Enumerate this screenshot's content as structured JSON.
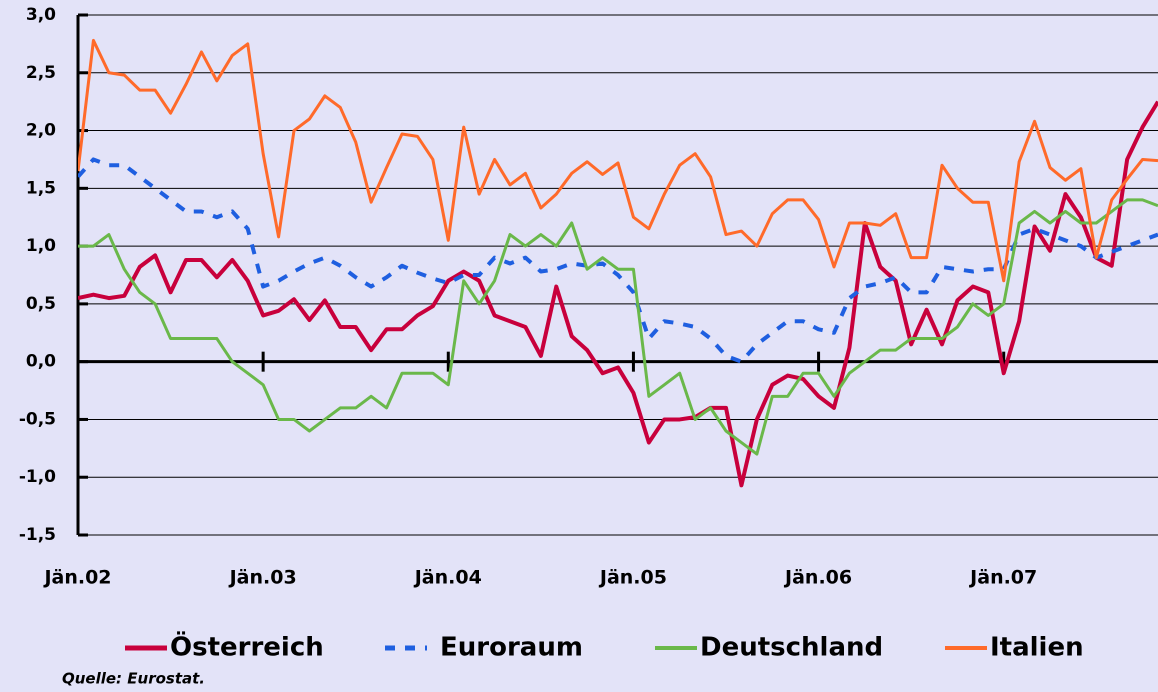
{
  "chart_data": {
    "type": "line",
    "categories": [
      "Jän.02",
      null,
      null,
      null,
      null,
      null,
      null,
      null,
      null,
      null,
      null,
      null,
      "Jän.03",
      null,
      null,
      null,
      null,
      null,
      null,
      null,
      null,
      null,
      null,
      null,
      "Jän.04",
      null,
      null,
      null,
      null,
      null,
      null,
      null,
      null,
      null,
      null,
      null,
      "Jän.05",
      null,
      null,
      null,
      null,
      null,
      null,
      null,
      null,
      null,
      null,
      null,
      "Jän.06",
      null,
      null,
      null,
      null,
      null,
      null,
      null,
      null,
      null,
      null,
      null,
      "Jän.07",
      null,
      null,
      null,
      null,
      null,
      null,
      null,
      null,
      null,
      null
    ],
    "series": [
      {
        "name": "Österreich",
        "color": "#c8003c",
        "style": "solid",
        "width": 4,
        "values": [
          0.55,
          0.58,
          0.55,
          0.57,
          0.82,
          0.92,
          0.6,
          0.88,
          0.88,
          0.73,
          0.88,
          0.7,
          0.4,
          0.44,
          0.54,
          0.36,
          0.53,
          0.3,
          0.3,
          0.1,
          0.28,
          0.28,
          0.4,
          0.48,
          0.7,
          0.78,
          0.7,
          0.4,
          0.35,
          0.3,
          0.05,
          0.65,
          0.22,
          0.1,
          -0.1,
          -0.05,
          -0.27,
          -0.7,
          -0.5,
          -0.5,
          -0.48,
          -0.4,
          -0.4,
          -1.07,
          -0.5,
          -0.2,
          -0.12,
          -0.15,
          -0.3,
          -0.4,
          0.12,
          1.2,
          0.82,
          0.7,
          0.15,
          0.45,
          0.15,
          0.53,
          0.65,
          0.6,
          -0.1,
          0.35,
          1.17,
          0.96,
          1.45,
          1.25,
          0.9,
          0.83,
          1.75,
          2.03,
          2.25
        ]
      },
      {
        "name": "Euroraum",
        "color": "#1f5fe0",
        "style": "dashed",
        "width": 4,
        "values": [
          1.6,
          1.75,
          1.7,
          1.7,
          1.6,
          1.5,
          1.4,
          1.3,
          1.3,
          1.25,
          1.3,
          1.15,
          0.65,
          0.7,
          0.78,
          0.85,
          0.9,
          0.83,
          0.73,
          0.65,
          0.73,
          0.83,
          0.77,
          0.72,
          0.68,
          0.75,
          0.75,
          0.9,
          0.85,
          0.9,
          0.78,
          0.8,
          0.85,
          0.83,
          0.85,
          0.75,
          0.6,
          0.2,
          0.35,
          0.33,
          0.3,
          0.2,
          0.05,
          0.0,
          0.15,
          0.25,
          0.35,
          0.35,
          0.28,
          0.25,
          0.55,
          0.65,
          0.68,
          0.73,
          0.6,
          0.6,
          0.82,
          0.8,
          0.78,
          0.8,
          0.8,
          1.1,
          1.15,
          1.1,
          1.05,
          1.0,
          0.9,
          0.95,
          1.0,
          1.05,
          1.1
        ]
      },
      {
        "name": "Deutschland",
        "color": "#6ab84a",
        "style": "solid",
        "width": 3,
        "values": [
          1.0,
          1.0,
          1.1,
          0.8,
          0.6,
          0.5,
          0.2,
          0.2,
          0.2,
          0.2,
          0.0,
          -0.1,
          -0.2,
          -0.5,
          -0.5,
          -0.6,
          -0.5,
          -0.4,
          -0.4,
          -0.3,
          -0.4,
          -0.1,
          -0.1,
          -0.1,
          -0.2,
          0.7,
          0.5,
          0.7,
          1.1,
          1.0,
          1.1,
          1.0,
          1.2,
          0.8,
          0.9,
          0.8,
          0.8,
          -0.3,
          -0.2,
          -0.1,
          -0.5,
          -0.4,
          -0.6,
          -0.7,
          -0.8,
          -0.3,
          -0.3,
          -0.1,
          -0.1,
          -0.3,
          -0.1,
          0.0,
          0.1,
          0.1,
          0.2,
          0.2,
          0.2,
          0.3,
          0.5,
          0.4,
          0.5,
          1.2,
          1.3,
          1.2,
          1.3,
          1.2,
          1.2,
          1.3,
          1.4,
          1.4,
          1.35
        ]
      },
      {
        "name": "Italien",
        "color": "#ff6a2a",
        "style": "solid",
        "width": 3,
        "values": [
          1.65,
          2.78,
          2.5,
          2.48,
          2.35,
          2.35,
          2.15,
          2.4,
          2.68,
          2.43,
          2.65,
          2.75,
          1.8,
          1.08,
          2.0,
          2.1,
          2.3,
          2.2,
          1.9,
          1.38,
          1.68,
          1.97,
          1.95,
          1.75,
          1.05,
          2.03,
          1.45,
          1.75,
          1.53,
          1.63,
          1.33,
          1.45,
          1.63,
          1.73,
          1.62,
          1.72,
          1.25,
          1.15,
          1.45,
          1.7,
          1.8,
          1.6,
          1.1,
          1.13,
          1.0,
          1.28,
          1.4,
          1.4,
          1.23,
          0.82,
          1.2,
          1.2,
          1.18,
          1.28,
          0.9,
          0.9,
          1.7,
          1.5,
          1.38,
          1.38,
          0.7,
          1.73,
          2.08,
          1.68,
          1.57,
          1.67,
          0.9,
          1.4,
          1.58,
          1.75,
          1.74
        ]
      }
    ],
    "ylim": [
      -1.5,
      3.0
    ],
    "yticks": [
      {
        "value": -1.5,
        "label": "-1,5"
      },
      {
        "value": -1.0,
        "label": "-1,0"
      },
      {
        "value": -0.5,
        "label": "-0,5"
      },
      {
        "value": 0,
        "label": "0,0"
      },
      {
        "value": 0.5,
        "label": "0,5"
      },
      {
        "value": 1.0,
        "label": "1,0"
      },
      {
        "value": 1.5,
        "label": "1,5"
      },
      {
        "value": 2.0,
        "label": "2,0"
      },
      {
        "value": 2.5,
        "label": "2,5"
      },
      {
        "value": 3.0,
        "label": "3,0"
      }
    ],
    "grid": true,
    "legend": "bottom",
    "source": "Quelle: Eurostat."
  }
}
